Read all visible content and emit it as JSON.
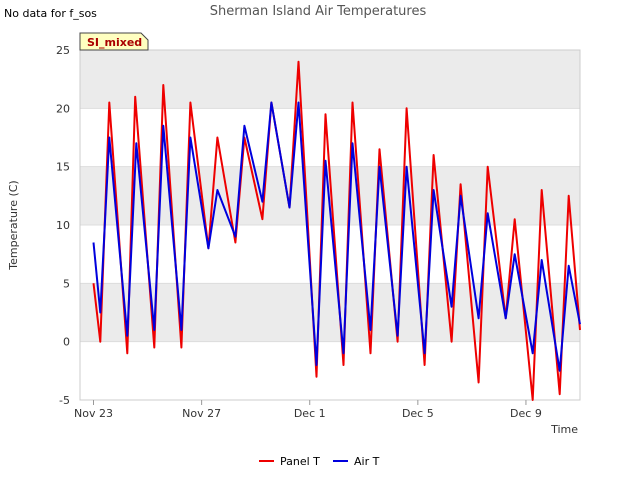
{
  "note": "No data for f_sos",
  "badge": "SI_mixed",
  "colors": {
    "panel": "#ee0000",
    "air": "#0000dd",
    "band": "#ebebeb",
    "badge_bg": "#ffffc0"
  },
  "chart_data": {
    "type": "line",
    "title": "Sherman Island Air Temperatures",
    "xlabel": "Time",
    "ylabel": "Temperature (C)",
    "ylim": [
      -5,
      25
    ],
    "yticks": [
      -5,
      0,
      5,
      10,
      15,
      20,
      25
    ],
    "xlim": [
      "2019-11-22T12:00",
      "2019-12-11T00:00"
    ],
    "xticks": [
      {
        "date": "2019-11-23",
        "label": "Nov 23"
      },
      {
        "date": "2019-11-27",
        "label": "Nov 27"
      },
      {
        "date": "2019-12-01",
        "label": "Dec 1"
      },
      {
        "date": "2019-12-05",
        "label": "Dec 5"
      },
      {
        "date": "2019-12-09",
        "label": "Dec 9"
      }
    ],
    "legend_position": "bottom-center",
    "series": [
      {
        "name": "Panel T",
        "points": [
          [
            "2019-11-23T00:00",
            5
          ],
          [
            "2019-11-23T06:00",
            0
          ],
          [
            "2019-11-23T14:00",
            20.5
          ],
          [
            "2019-11-24T06:00",
            -1
          ],
          [
            "2019-11-24T13:00",
            21
          ],
          [
            "2019-11-25T06:00",
            -0.5
          ],
          [
            "2019-11-25T14:00",
            22
          ],
          [
            "2019-11-26T06:00",
            -0.5
          ],
          [
            "2019-11-26T14:00",
            20.5
          ],
          [
            "2019-11-27T06:00",
            8
          ],
          [
            "2019-11-27T14:00",
            17.5
          ],
          [
            "2019-11-28T06:00",
            8.5
          ],
          [
            "2019-11-28T14:00",
            17.5
          ],
          [
            "2019-11-29T06:00",
            10.5
          ],
          [
            "2019-11-29T14:00",
            20.5
          ],
          [
            "2019-11-30T06:00",
            11.5
          ],
          [
            "2019-11-30T14:00",
            24
          ],
          [
            "2019-12-01T06:00",
            -3
          ],
          [
            "2019-12-01T14:00",
            19.5
          ],
          [
            "2019-12-02T06:00",
            -2
          ],
          [
            "2019-12-02T14:00",
            20.5
          ],
          [
            "2019-12-03T06:00",
            -1
          ],
          [
            "2019-12-03T14:00",
            16.5
          ],
          [
            "2019-12-04T06:00",
            0
          ],
          [
            "2019-12-04T14:00",
            20
          ],
          [
            "2019-12-05T06:00",
            -2
          ],
          [
            "2019-12-05T14:00",
            16
          ],
          [
            "2019-12-06T06:00",
            0
          ],
          [
            "2019-12-06T14:00",
            13.5
          ],
          [
            "2019-12-07T06:00",
            -3.5
          ],
          [
            "2019-12-07T14:00",
            15
          ],
          [
            "2019-12-08T06:00",
            2
          ],
          [
            "2019-12-08T14:00",
            10.5
          ],
          [
            "2019-12-09T06:00",
            -5
          ],
          [
            "2019-12-09T14:00",
            13
          ],
          [
            "2019-12-10T06:00",
            -4.5
          ],
          [
            "2019-12-10T14:00",
            12.5
          ],
          [
            "2019-12-11T00:00",
            1
          ]
        ]
      },
      {
        "name": "Air T",
        "points": [
          [
            "2019-11-23T00:00",
            8.5
          ],
          [
            "2019-11-23T06:00",
            2.5
          ],
          [
            "2019-11-23T14:00",
            17.5
          ],
          [
            "2019-11-24T06:00",
            0.5
          ],
          [
            "2019-11-24T14:00",
            17
          ],
          [
            "2019-11-25T06:00",
            1
          ],
          [
            "2019-11-25T14:00",
            18.5
          ],
          [
            "2019-11-26T06:00",
            1
          ],
          [
            "2019-11-26T14:00",
            17.5
          ],
          [
            "2019-11-27T06:00",
            8
          ],
          [
            "2019-11-27T14:00",
            13
          ],
          [
            "2019-11-28T06:00",
            9
          ],
          [
            "2019-11-28T14:00",
            18.5
          ],
          [
            "2019-11-29T06:00",
            12
          ],
          [
            "2019-11-29T14:00",
            20.5
          ],
          [
            "2019-11-30T06:00",
            11.5
          ],
          [
            "2019-11-30T14:00",
            20.5
          ],
          [
            "2019-12-01T06:00",
            -2
          ],
          [
            "2019-12-01T14:00",
            15.5
          ],
          [
            "2019-12-02T06:00",
            -1
          ],
          [
            "2019-12-02T14:00",
            17
          ],
          [
            "2019-12-03T06:00",
            1
          ],
          [
            "2019-12-03T14:00",
            15
          ],
          [
            "2019-12-04T06:00",
            0.5
          ],
          [
            "2019-12-04T14:00",
            15
          ],
          [
            "2019-12-05T06:00",
            -1
          ],
          [
            "2019-12-05T14:00",
            13
          ],
          [
            "2019-12-06T06:00",
            3
          ],
          [
            "2019-12-06T14:00",
            12.5
          ],
          [
            "2019-12-07T06:00",
            2
          ],
          [
            "2019-12-07T14:00",
            11
          ],
          [
            "2019-12-08T06:00",
            2
          ],
          [
            "2019-12-08T14:00",
            7.5
          ],
          [
            "2019-12-09T06:00",
            -1
          ],
          [
            "2019-12-09T14:00",
            7
          ],
          [
            "2019-12-10T06:00",
            -2.5
          ],
          [
            "2019-12-10T14:00",
            6.5
          ],
          [
            "2019-12-11T00:00",
            1.5
          ]
        ]
      }
    ]
  }
}
